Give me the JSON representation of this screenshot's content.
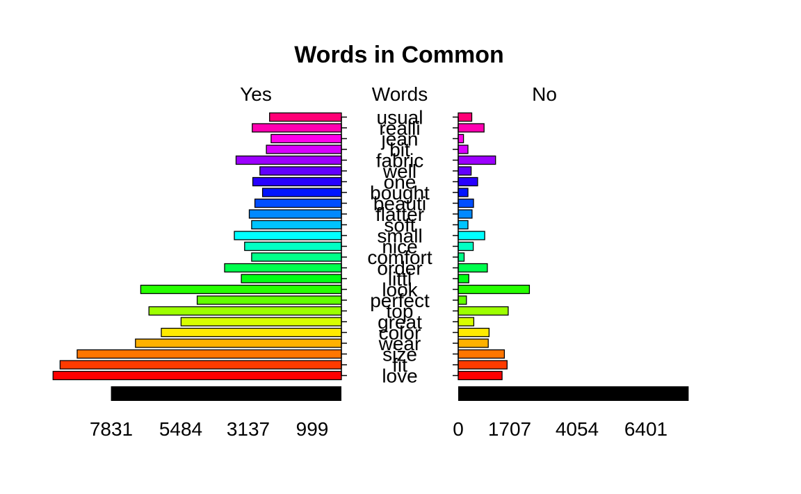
{
  "chart_data": {
    "type": "bar",
    "title": "Words in Common",
    "left_label": "Yes",
    "center_label": "Words",
    "right_label": "No",
    "categories": [
      "love",
      "fit",
      "size",
      "wear",
      "color",
      "great",
      "top",
      "perfect",
      "look",
      "littl",
      "order",
      "comfort",
      "nice",
      "small",
      "soft",
      "flatter",
      "beauti",
      "bought",
      "one",
      "well",
      "fabric",
      "bit",
      "jean",
      "realli",
      "usual"
    ],
    "series": [
      {
        "name": "Yes",
        "values": [
          9800,
          9560,
          8980,
          7000,
          6120,
          5450,
          6540,
          4900,
          6820,
          3400,
          3970,
          3050,
          3290,
          3640,
          3050,
          3130,
          2940,
          2680,
          3010,
          2770,
          3580,
          2550,
          2390,
          3030,
          2440
        ]
      },
      {
        "name": "No",
        "values": [
          1490,
          1660,
          1570,
          1020,
          1050,
          530,
          1700,
          280,
          2420,
          360,
          990,
          200,
          510,
          900,
          330,
          470,
          520,
          330,
          660,
          440,
          1270,
          330,
          180,
          880,
          460
        ]
      }
    ],
    "colors": [
      "#ff0000",
      "#ff3b00",
      "#ff7600",
      "#ffb100",
      "#ffeb00",
      "#d8ff00",
      "#9dff00",
      "#62ff00",
      "#27ff00",
      "#00ff14",
      "#00ff4e",
      "#00ff89",
      "#00ffc4",
      "#00ffff",
      "#00c4ff",
      "#0089ff",
      "#004eff",
      "#0014ff",
      "#2700ff",
      "#6200ff",
      "#9d00ff",
      "#d800ff",
      "#ff00eb",
      "#ff00b1",
      "#ff0076"
    ],
    "left_ticks": [
      7831,
      5484,
      3137,
      999
    ],
    "right_ticks": [
      0,
      1707,
      4054,
      6401
    ],
    "axis_max": 7831,
    "scale_bar_value": 7831
  }
}
